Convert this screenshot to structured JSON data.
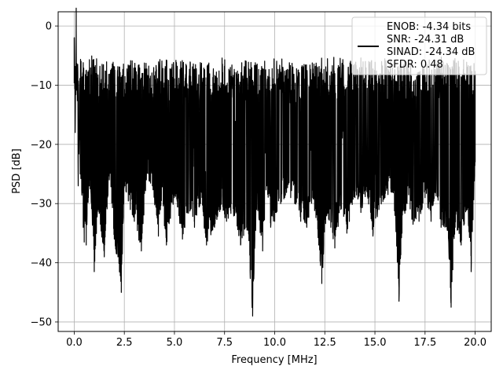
{
  "chart_data": {
    "type": "line",
    "title": "",
    "xlabel": "Frequency [MHz]",
    "ylabel": "PSD [dB]",
    "xlim": [
      -0.8,
      20.8
    ],
    "ylim": [
      -51.6,
      2.4
    ],
    "xticks": [
      0.0,
      2.5,
      5.0,
      7.5,
      10.0,
      12.5,
      15.0,
      17.5,
      20.0
    ],
    "xtick_labels": [
      "0.0",
      "2.5",
      "5.0",
      "7.5",
      "10.0",
      "12.5",
      "15.0",
      "17.5",
      "20.0"
    ],
    "yticks": [
      0,
      -10,
      -20,
      -30,
      -40,
      -50
    ],
    "ytick_labels": [
      "0",
      "−10",
      "−20",
      "−30",
      "−40",
      "−50"
    ],
    "grid": true,
    "legend_position": "top-right",
    "legend_lines": [
      "ENOB: -4.34 bits",
      "SNR: -24.31 dB",
      "SINAD: -24.34 dB",
      "SFDR: 0.48"
    ],
    "series_color": "#000000",
    "series": [
      {
        "x": [
          0.0,
          0.05,
          0.1,
          0.2,
          0.25,
          0.3,
          0.45,
          0.5,
          0.55,
          0.6,
          0.75,
          0.8,
          1.0,
          1.2,
          1.5,
          1.75,
          2.0,
          2.35,
          2.5,
          2.8,
          3.0,
          3.35,
          3.6,
          3.9,
          4.2,
          4.35,
          4.6,
          4.8,
          5.0,
          5.4,
          5.8,
          6.0,
          6.3,
          6.6,
          7.0,
          7.3,
          7.6,
          8.0,
          8.3,
          8.6,
          8.9,
          9.1,
          9.4,
          9.6,
          9.8,
          10.0,
          10.3,
          10.5,
          10.8,
          11.0,
          11.3,
          11.6,
          11.9,
          12.2,
          12.35,
          12.6,
          12.8,
          13.0,
          13.3,
          13.6,
          14.0,
          14.3,
          14.6,
          14.9,
          15.2,
          15.5,
          15.8,
          16.0,
          16.2,
          16.35,
          16.6,
          16.9,
          17.2,
          17.5,
          17.8,
          18.0,
          18.3,
          18.6,
          18.8,
          19.0,
          19.3,
          19.6,
          19.8,
          20.0
        ],
        "y": [
          -2,
          -18,
          0,
          -27,
          -19,
          -25,
          -34,
          -36.5,
          -33,
          -37,
          -27,
          -27.5,
          -41.5,
          -31,
          -39,
          -26,
          -36,
          -45,
          -27,
          -31,
          -33,
          -38,
          -26,
          -27,
          -35.5,
          -29.5,
          -37,
          -32.5,
          -29,
          -36,
          -31,
          -34,
          -30,
          -37,
          -34,
          -31,
          -33,
          -32,
          -37,
          -34,
          -49,
          -31,
          -38,
          -27,
          -34,
          -33,
          -30,
          -29,
          -29,
          -30,
          -33,
          -34,
          -29,
          -37,
          -43.5,
          -32,
          -34,
          -37.5,
          -31,
          -35,
          -29,
          -31.5,
          -28,
          -35.5,
          -31,
          -29,
          -28,
          -32,
          -46.5,
          -35,
          -30,
          -33.5,
          -33,
          -29,
          -33,
          -28,
          -34,
          -34,
          -47.5,
          -34,
          -37,
          -31,
          -41.5,
          -23
        ]
      }
    ]
  }
}
